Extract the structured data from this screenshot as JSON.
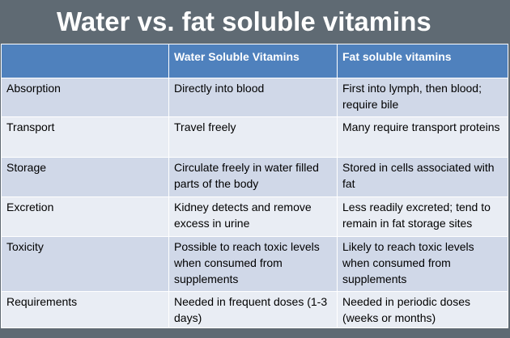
{
  "title": "Water vs. fat soluble vitamins",
  "table": {
    "headers": [
      "",
      "Water Soluble Vitamins",
      "Fat soluble vitamins"
    ],
    "rows": [
      {
        "label": "Absorption",
        "water": "Directly into blood",
        "fat": "First into lymph, then blood; require bile"
      },
      {
        "label": "Transport",
        "water": "Travel freely",
        "fat": "Many require transport proteins"
      },
      {
        "label": "Storage",
        "water": "Circulate freely in water filled parts of the body",
        "fat": "Stored in cells associated with fat"
      },
      {
        "label": "Excretion",
        "water": "Kidney detects and remove excess in urine",
        "fat": "Less readily excreted; tend to remain in fat storage sites"
      },
      {
        "label": "Toxicity",
        "water": "Possible to reach toxic levels when consumed from supplements",
        "fat": "Likely to reach toxic levels when consumed from supplements"
      },
      {
        "label": "Requirements",
        "water": "Needed in frequent doses (1-3 days)",
        "fat": "Needed in periodic doses (weeks or months)"
      }
    ]
  }
}
